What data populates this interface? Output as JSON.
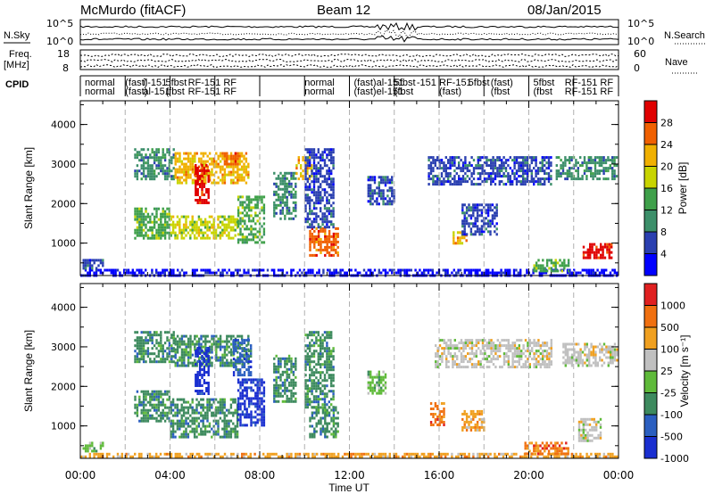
{
  "header": {
    "title": "McMurdo (fitACF)",
    "beam": "Beam 12",
    "date": "08/Jan/2015"
  },
  "summary": {
    "nsky_label": "N.Sky",
    "nsky_ticks": [
      "10^5",
      "10^0"
    ],
    "nsearch_label": "N.Search",
    "nsearch_ticks": [
      "10^5",
      "10^0"
    ],
    "freq_label": "Freq.",
    "freq_unit": "[MHz]",
    "freq_ticks": [
      "18",
      "8"
    ],
    "nave_label": "Nave",
    "nave_ticks": [
      "60",
      "0"
    ],
    "cpid_label": "CPID",
    "cpid_top": [
      {
        "text": "normal",
        "hour": 0.2
      },
      {
        "text": "(fast)",
        "hour": 2.0
      },
      {
        "text": "il-151",
        "hour": 2.8
      },
      {
        "text": "5fbst",
        "hour": 3.8
      },
      {
        "text": "RF-151 RF",
        "hour": 4.8
      },
      {
        "text": "normal",
        "hour": 10.0
      },
      {
        "text": "(fast)",
        "hour": 12.2
      },
      {
        "text": "al-151",
        "hour": 13.2
      },
      {
        "text": "5fbst",
        "hour": 14.0
      },
      {
        "text": "-151",
        "hour": 15.0
      },
      {
        "text": "RF-151",
        "hour": 16.0
      },
      {
        "text": "5fbst",
        "hour": 17.3
      },
      {
        "text": "(fast)",
        "hour": 18.3
      },
      {
        "text": "5fbst",
        "hour": 20.2
      },
      {
        "text": "RF-151 RF",
        "hour": 21.6
      }
    ],
    "cpid_bottom": [
      {
        "text": "normal",
        "hour": 0.2
      },
      {
        "text": "(fast)",
        "hour": 2.0
      },
      {
        "text": "al-151",
        "hour": 2.8
      },
      {
        "text": "(fbst",
        "hour": 3.8
      },
      {
        "text": "RF-151 RF",
        "hour": 4.8
      },
      {
        "text": "normal",
        "hour": 10.0
      },
      {
        "text": "(fast)",
        "hour": 12.2
      },
      {
        "text": "el-151",
        "hour": 13.2
      },
      {
        "text": "(fbst",
        "hour": 14.0
      },
      {
        "text": "(fast)",
        "hour": 16.0
      },
      {
        "text": "(fbst",
        "hour": 18.3
      },
      {
        "text": "(fbst",
        "hour": 20.2
      },
      {
        "text": "RF-151 RF",
        "hour": 21.6
      }
    ]
  },
  "colors": {
    "power": [
      "#0000ff",
      "#2a3fb0",
      "#3c8f6a",
      "#3fa04a",
      "#c8d400",
      "#f0b000",
      "#f06000",
      "#e00000"
    ],
    "velocity": [
      "#1a2fd0",
      "#2b5fc0",
      "#3d8a5e",
      "#5fba3a",
      "#c0c0c0",
      "#f0a020",
      "#f07010",
      "#e02020"
    ]
  },
  "chart_data": [
    {
      "type": "heatmap",
      "name": "power",
      "ylabel": "Slant Range [km]",
      "xlabel": "Time UT",
      "xlim": [
        0,
        24
      ],
      "ylim": [
        180,
        4600
      ],
      "x_ticks": [
        "00:00",
        "04:00",
        "08:00",
        "12:00",
        "16:00",
        "20:00",
        "00:00"
      ],
      "y_ticks": [
        1000,
        2000,
        3000,
        4000
      ],
      "colorbar": {
        "label": "Power [dB]",
        "ticks": [
          "4",
          "8",
          "12",
          "16",
          "20",
          "24",
          "28"
        ],
        "levels": 8
      },
      "regions": [
        {
          "t0": 0.0,
          "t1": 23.9,
          "r0": 200,
          "r1": 350,
          "level": 0
        },
        {
          "t0": 0.1,
          "t1": 1.0,
          "r0": 350,
          "r1": 600,
          "level": 1
        },
        {
          "t0": 2.4,
          "t1": 4.2,
          "r0": 2600,
          "r1": 3400,
          "level": 2
        },
        {
          "t0": 4.2,
          "t1": 7.5,
          "r0": 2500,
          "r1": 3300,
          "level": 5
        },
        {
          "t0": 5.1,
          "t1": 5.7,
          "r0": 2000,
          "r1": 3000,
          "level": 7
        },
        {
          "t0": 6.3,
          "t1": 7.0,
          "r0": 3000,
          "r1": 3300,
          "level": 6
        },
        {
          "t0": 2.4,
          "t1": 4.0,
          "r0": 1100,
          "r1": 1900,
          "level": 3
        },
        {
          "t0": 4.0,
          "t1": 7.0,
          "r0": 1100,
          "r1": 1700,
          "level": 4
        },
        {
          "t0": 7.0,
          "t1": 8.2,
          "r0": 1000,
          "r1": 2200,
          "level": 3
        },
        {
          "t0": 8.6,
          "t1": 9.6,
          "r0": 1600,
          "r1": 2800,
          "level": 2
        },
        {
          "t0": 9.6,
          "t1": 10.3,
          "r0": 2600,
          "r1": 3200,
          "level": 5
        },
        {
          "t0": 10.2,
          "t1": 11.5,
          "r0": 700,
          "r1": 1400,
          "level": 6
        },
        {
          "t0": 10.0,
          "t1": 11.3,
          "r0": 1400,
          "r1": 3400,
          "level": 1
        },
        {
          "t0": 12.8,
          "t1": 14.0,
          "r0": 2000,
          "r1": 2700,
          "level": 1
        },
        {
          "t0": 15.5,
          "t1": 21.0,
          "r0": 2500,
          "r1": 3200,
          "level": 1
        },
        {
          "t0": 16.6,
          "t1": 17.2,
          "r0": 1000,
          "r1": 1300,
          "level": 5
        },
        {
          "t0": 17.0,
          "t1": 18.6,
          "r0": 1200,
          "r1": 2000,
          "level": 1
        },
        {
          "t0": 20.2,
          "t1": 21.8,
          "r0": 300,
          "r1": 600,
          "level": 3
        },
        {
          "t0": 22.4,
          "t1": 23.7,
          "r0": 600,
          "r1": 1000,
          "level": 7
        },
        {
          "t0": 21.2,
          "t1": 23.9,
          "r0": 2600,
          "r1": 3200,
          "level": 2
        }
      ]
    },
    {
      "type": "heatmap",
      "name": "velocity",
      "ylabel": "Slant Range [km]",
      "xlabel": "Time UT",
      "xlim": [
        0,
        24
      ],
      "ylim": [
        180,
        4600
      ],
      "x_ticks": [
        "00:00",
        "04:00",
        "08:00",
        "12:00",
        "16:00",
        "20:00",
        "00:00"
      ],
      "y_ticks": [
        1000,
        2000,
        3000,
        4000
      ],
      "colorbar": {
        "label": "Velocity [m s⁻¹]",
        "ticks": [
          "1000",
          "500",
          "100",
          "25",
          "-25",
          "-100",
          "-500",
          "-1000"
        ],
        "levels": 8
      },
      "regions": [
        {
          "t0": 0.0,
          "t1": 23.9,
          "r0": 200,
          "r1": 320,
          "level": 5
        },
        {
          "t0": 0.1,
          "t1": 1.0,
          "r0": 350,
          "r1": 600,
          "level": 3
        },
        {
          "t0": 2.4,
          "t1": 4.2,
          "r0": 2600,
          "r1": 3400,
          "level": 2
        },
        {
          "t0": 4.2,
          "t1": 7.5,
          "r0": 2500,
          "r1": 3300,
          "level": 2
        },
        {
          "t0": 5.1,
          "t1": 5.7,
          "r0": 1800,
          "r1": 3000,
          "level": 0
        },
        {
          "t0": 6.8,
          "t1": 7.6,
          "r0": 2300,
          "r1": 3200,
          "level": 1
        },
        {
          "t0": 2.4,
          "t1": 4.0,
          "r0": 1100,
          "r1": 1900,
          "level": 2
        },
        {
          "t0": 4.0,
          "t1": 7.0,
          "r0": 700,
          "r1": 1700,
          "level": 2
        },
        {
          "t0": 7.0,
          "t1": 8.2,
          "r0": 1000,
          "r1": 2200,
          "level": 0
        },
        {
          "t0": 8.6,
          "t1": 9.6,
          "r0": 1600,
          "r1": 2800,
          "level": 2
        },
        {
          "t0": 10.2,
          "t1": 11.5,
          "r0": 700,
          "r1": 1500,
          "level": 2
        },
        {
          "t0": 10.0,
          "t1": 11.3,
          "r0": 1500,
          "r1": 3400,
          "level": 2
        },
        {
          "t0": 12.8,
          "t1": 13.6,
          "r0": 1800,
          "r1": 2400,
          "level": 3
        },
        {
          "t0": 15.8,
          "t1": 21.0,
          "r0": 2500,
          "r1": 3200,
          "level": 4
        },
        {
          "t0": 15.6,
          "t1": 16.2,
          "r0": 1000,
          "r1": 1600,
          "level": 6
        },
        {
          "t0": 17.0,
          "t1": 18.0,
          "r0": 900,
          "r1": 1400,
          "level": 5
        },
        {
          "t0": 19.8,
          "t1": 21.8,
          "r0": 300,
          "r1": 600,
          "level": 6
        },
        {
          "t0": 22.2,
          "t1": 23.2,
          "r0": 600,
          "r1": 1200,
          "level": 4
        },
        {
          "t0": 21.5,
          "t1": 23.9,
          "r0": 2500,
          "r1": 3100,
          "level": 4
        }
      ]
    }
  ]
}
